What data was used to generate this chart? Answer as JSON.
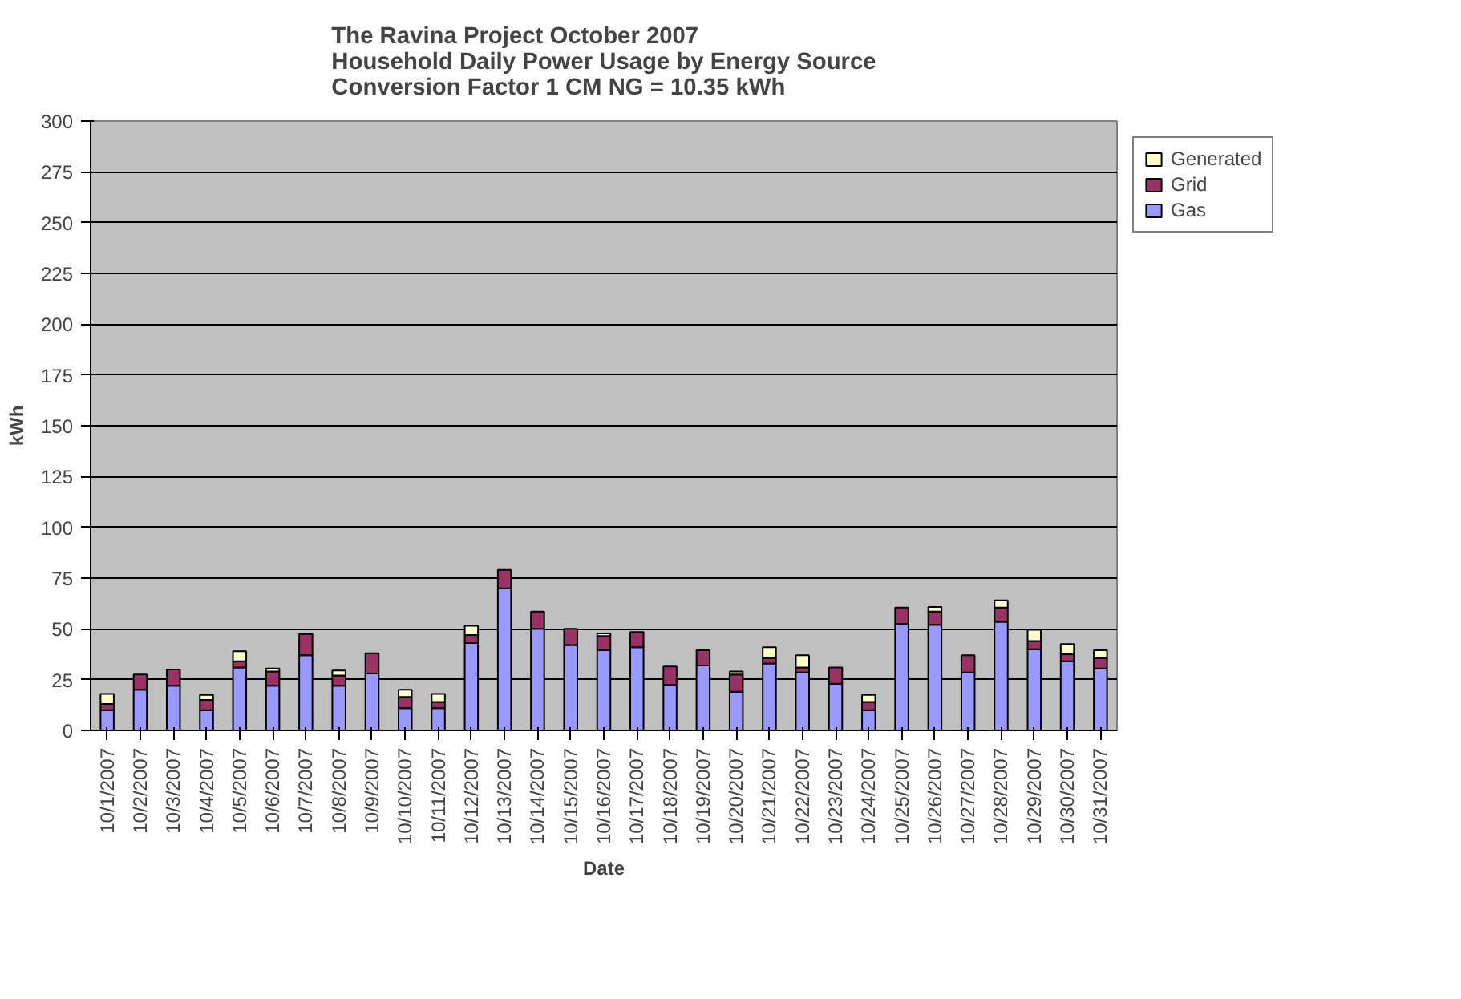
{
  "chart_data": {
    "type": "bar",
    "stacked": true,
    "title": "The Ravina Project October 2007\nHousehold Daily Power Usage by Energy Source\nConversion Factor 1 CM NG = 10.35 kWh",
    "xlabel": "Date",
    "ylabel": "kWh",
    "categories": [
      "10/1/2007",
      "10/2/2007",
      "10/3/2007",
      "10/4/2007",
      "10/5/2007",
      "10/6/2007",
      "10/7/2007",
      "10/8/2007",
      "10/9/2007",
      "10/10/2007",
      "10/11/2007",
      "10/12/2007",
      "10/13/2007",
      "10/14/2007",
      "10/15/2007",
      "10/16/2007",
      "10/17/2007",
      "10/18/2007",
      "10/19/2007",
      "10/20/2007",
      "10/21/2007",
      "10/22/2007",
      "10/23/2007",
      "10/24/2007",
      "10/25/2007",
      "10/26/2007",
      "10/27/2007",
      "10/28/2007",
      "10/29/2007",
      "10/30/2007",
      "10/31/2007"
    ],
    "series": [
      {
        "name": "Gas",
        "color": "#9999ff",
        "values": [
          10,
          20,
          22,
          10,
          31,
          22,
          37,
          22,
          28,
          11,
          11,
          43,
          70,
          50,
          42,
          39.5,
          41,
          22.5,
          32,
          19,
          33,
          28.5,
          23,
          10,
          52.5,
          52,
          28.5,
          53.5,
          40,
          34,
          30.5
        ]
      },
      {
        "name": "Grid",
        "color": "#993366",
        "values": [
          3,
          7.5,
          8,
          5,
          3,
          7,
          10.5,
          5,
          10,
          5.5,
          3,
          4,
          9,
          8.5,
          8,
          7,
          7.5,
          9,
          7.5,
          8.5,
          2.5,
          2.5,
          8,
          4,
          8,
          6.5,
          8.5,
          7,
          4,
          3.5,
          5
        ]
      },
      {
        "name": "Generated",
        "color": "#ffffcc",
        "values": [
          5,
          0,
          0,
          2.5,
          5,
          1.5,
          0,
          2.5,
          0,
          3.5,
          4,
          4.5,
          0,
          0,
          0,
          1.3,
          0,
          0,
          0,
          1.5,
          5.5,
          6,
          0,
          3.5,
          0,
          2.3,
          0,
          3.5,
          5.5,
          5,
          4
        ]
      }
    ],
    "ylim": [
      0,
      300
    ],
    "yticks": [
      0,
      25,
      50,
      75,
      100,
      125,
      150,
      175,
      200,
      225,
      250,
      275,
      300
    ],
    "grid": "y",
    "legend": "right"
  }
}
